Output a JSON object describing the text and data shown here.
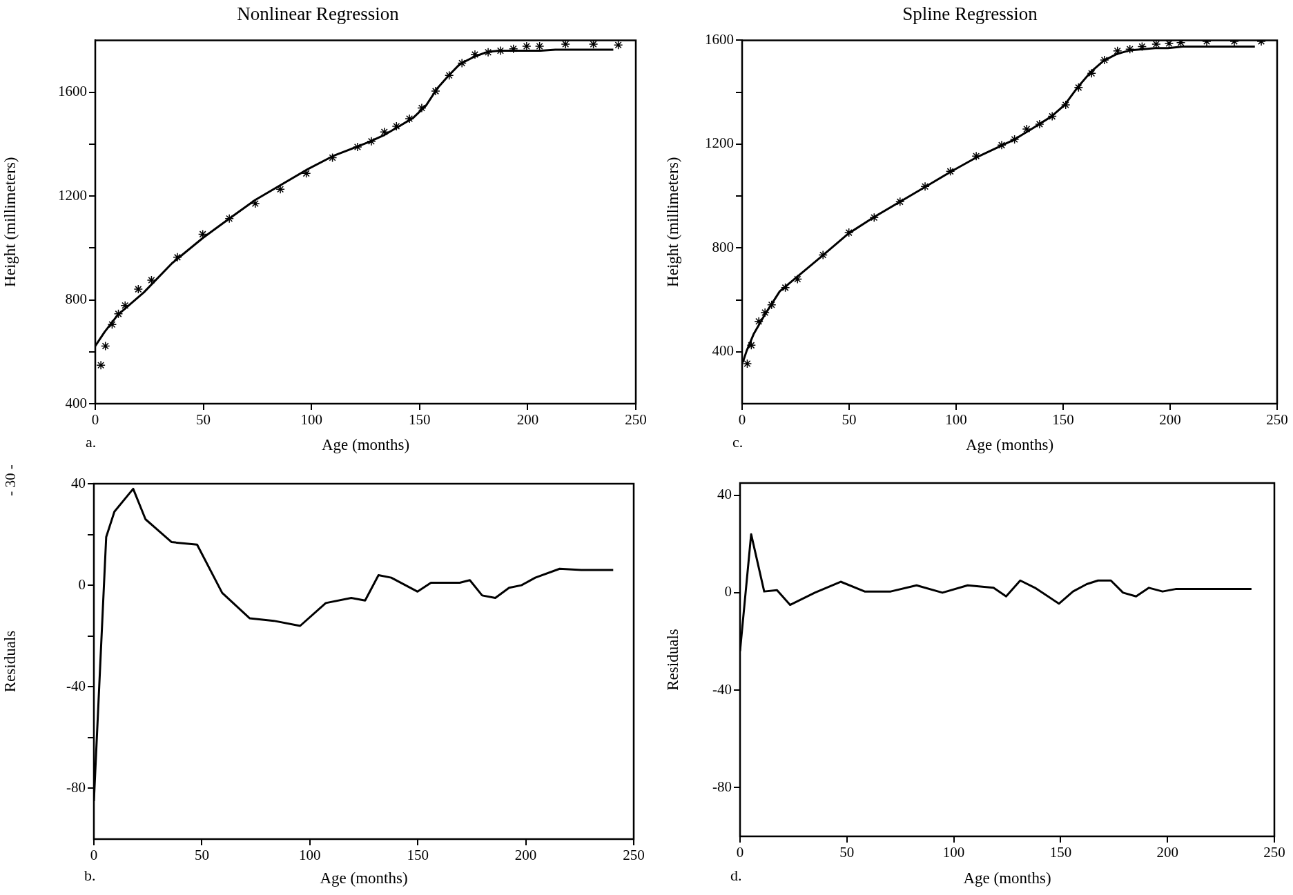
{
  "chart_data": [
    {
      "type": "scatter",
      "title": "Nonlinear Regression",
      "xlabel": "Age (months)",
      "ylabel": "Height (millimeters)",
      "annotations": [
        "a."
      ],
      "xlim": [
        0,
        250
      ],
      "xticks": [
        0,
        50,
        100,
        150,
        200,
        250
      ],
      "ylim": [
        400,
        1800
      ],
      "yticks": [
        400,
        {
          "value": 600,
          "label": null
        },
        800,
        {
          "value": 1000,
          "label": null
        },
        1200,
        {
          "value": 1400,
          "label": null
        },
        1600
      ],
      "series": [
        {
          "type": "scatter",
          "marker": "cross",
          "color": "#000000",
          "x": [
            2.6,
            4.7,
            7.8,
            10.7,
            13.8,
            19.9,
            26,
            38,
            49.7,
            62,
            74,
            85.6,
            97.6,
            109.7,
            121.3,
            127.7,
            133.7,
            139.3,
            145.3,
            151,
            157.4,
            163.7,
            169.6,
            175.6,
            181.7,
            187.4,
            193.4,
            199.5,
            205.5,
            217.5,
            230.4,
            241.9
          ],
          "values": [
            548,
            622,
            705,
            746,
            778,
            841,
            876,
            964,
            1053,
            1113,
            1171,
            1226,
            1287,
            1348,
            1389,
            1411,
            1447,
            1469,
            1498,
            1539,
            1604,
            1665,
            1712,
            1745,
            1754,
            1760,
            1767,
            1777,
            1777,
            1785,
            1785,
            1782
          ]
        },
        {
          "type": "line",
          "marker": "none",
          "line_style": "solid",
          "color": "#000000",
          "x": [
            0,
            4.3,
            10.4,
            22.5,
            35.5,
            50,
            62,
            74,
            98.6,
            110.7,
            126.3,
            133.2,
            140,
            147,
            153,
            158.2,
            163.5,
            168.7,
            175.6,
            181.7,
            186.9,
            205.9,
            212.8,
            239.6
          ],
          "values": [
            622,
            676,
            742,
            829,
            941,
            1040,
            1113,
            1185,
            1305,
            1357,
            1407,
            1433,
            1466,
            1501,
            1549,
            1615,
            1665,
            1709,
            1738,
            1756,
            1760,
            1760,
            1764,
            1764
          ]
        }
      ]
    },
    {
      "type": "scatter",
      "title": "Spline Regression",
      "xlabel": "Age (months)",
      "ylabel": "Height (millimeters)",
      "annotations": [
        "c."
      ],
      "xlim": [
        0,
        250
      ],
      "xticks": [
        0,
        50,
        100,
        150,
        200,
        250
      ],
      "ylim": [
        200,
        1600
      ],
      "yticks": [
        400,
        {
          "value": 600,
          "label": null
        },
        800,
        {
          "value": 1000,
          "label": null
        },
        1200,
        {
          "value": 1400,
          "label": null
        },
        1600
      ],
      "series": [
        {
          "type": "scatter",
          "marker": "cross",
          "color": "#000000",
          "x": [
            2.4,
            4.3,
            7.8,
            10.7,
            13.8,
            20.2,
            25.9,
            37.8,
            49.9,
            61.7,
            73.8,
            85.5,
            97.3,
            109.4,
            121.3,
            127.3,
            133,
            139,
            144.9,
            151.2,
            157.2,
            163.3,
            169.3,
            175.4,
            181.2,
            186.9,
            193.5,
            199.5,
            205,
            217.1,
            230,
            242.6
          ],
          "values": [
            354,
            425,
            517,
            551,
            581,
            647,
            680,
            773,
            859,
            917,
            978,
            1037,
            1095,
            1154,
            1196,
            1218,
            1258,
            1277,
            1307,
            1351,
            1418,
            1473,
            1524,
            1559,
            1566,
            1576,
            1585,
            1588,
            1591,
            1596,
            1596,
            1596
          ]
        },
        {
          "type": "line",
          "marker": "none",
          "line_style": "solid",
          "color": "#000000",
          "x": [
            0.3,
            2.1,
            5.5,
            10.7,
            17.6,
            26.3,
            37.5,
            49.6,
            61.7,
            85.9,
            98,
            110,
            127.3,
            136,
            144.6,
            150.7,
            156.7,
            162.8,
            168.9,
            175,
            181,
            193,
            199,
            206,
            239.6
          ],
          "values": [
            359,
            403,
            470,
            544,
            633,
            693,
            770,
            855,
            919,
            1037,
            1096,
            1151,
            1218,
            1262,
            1307,
            1351,
            1418,
            1477,
            1521,
            1547,
            1561,
            1570,
            1570,
            1576,
            1576
          ]
        }
      ]
    },
    {
      "type": "line",
      "marker": "none",
      "line_style": "solid",
      "xlabel": "Age (months)",
      "ylabel": "Residuals",
      "annotations": [
        "b.",
        "- 30 -"
      ],
      "xlim": [
        0,
        250
      ],
      "xticks": [
        0,
        50,
        100,
        150,
        200,
        250
      ],
      "ylim": [
        -100,
        40
      ],
      "yticks": [
        -80,
        {
          "value": -60,
          "label": null
        },
        -40,
        {
          "value": -20,
          "label": null
        },
        0,
        {
          "value": 20,
          "label": null
        },
        40
      ],
      "series": [
        {
          "color": "#000000",
          "x": [
            0,
            5.7,
            9.5,
            18.2,
            23.9,
            36,
            47.8,
            59.4,
            72.1,
            83.3,
            95.5,
            107.4,
            119.2,
            125.6,
            131.8,
            137.7,
            149.9,
            156.1,
            169.4,
            174.1,
            179.8,
            185.9,
            192.3,
            198,
            204.4,
            215.7,
            225.7,
            240.5
          ],
          "values": [
            -85,
            19,
            29,
            38,
            26,
            17,
            16,
            -3,
            -13,
            -14,
            -16,
            -7,
            -5,
            -6,
            4,
            3,
            -2.5,
            1,
            1,
            2,
            -4,
            -5,
            -1,
            0,
            3,
            6.5,
            6,
            6
          ]
        }
      ]
    },
    {
      "type": "line",
      "marker": "none",
      "line_style": "solid",
      "xlabel": "Age (months)",
      "ylabel": "Residuals",
      "annotations": [
        "d."
      ],
      "xlim": [
        0,
        250
      ],
      "xticks": [
        0,
        50,
        100,
        150,
        200,
        250
      ],
      "ylim": [
        -100,
        45
      ],
      "yticks": [
        -80,
        -40,
        0,
        40
      ],
      "series": [
        {
          "color": "#000000",
          "x": [
            0,
            5.2,
            11.3,
            17.3,
            23.4,
            35,
            47.1,
            58.3,
            70.5,
            82.6,
            94.7,
            106.5,
            118.6,
            124.5,
            131.1,
            138,
            149.2,
            155.8,
            162.2,
            167.5,
            173.5,
            179.2,
            185.3,
            191.3,
            197.7,
            203.8,
            239.3
          ],
          "values": [
            -24,
            24,
            0.5,
            1,
            -5,
            0,
            4.5,
            0.5,
            0.5,
            3,
            0,
            3,
            2,
            -1.5,
            5,
            2,
            -4.5,
            0.5,
            3.5,
            5,
            5,
            0,
            -1.5,
            2,
            0.5,
            1.5,
            1.5
          ]
        }
      ]
    }
  ]
}
